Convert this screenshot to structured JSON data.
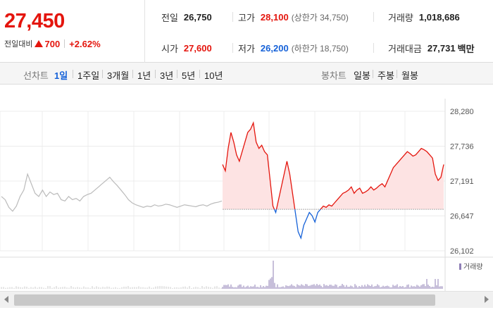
{
  "summary": {
    "price": "27,450",
    "change_label": "전일대비",
    "change_amount": "700",
    "change_pct": "+2.62%"
  },
  "info": {
    "prev_label": "전일",
    "prev_value": "26,750",
    "high_label": "고가",
    "high_value": "28,100",
    "upper_label": "(상한가 34,750)",
    "volume_label": "거래량",
    "volume_value": "1,018,686",
    "open_label": "시가",
    "open_value": "27,600",
    "low_label": "저가",
    "low_value": "26,200",
    "lower_label": "(하한가 18,750)",
    "amount_label": "거래대금",
    "amount_value": "27,731",
    "amount_unit": "백만"
  },
  "tabs": {
    "line_label": "선차트",
    "periods": [
      "1일",
      "1주일",
      "3개월",
      "1년",
      "3년",
      "5년",
      "10년"
    ],
    "selected_period": "1일",
    "candle_label": "봉차트",
    "candles": [
      "일봉",
      "주봉",
      "월봉"
    ]
  },
  "colors": {
    "up": "#e4150d",
    "down": "#1561d8",
    "prev_day": "#bbbbbb",
    "volume": "#8f7fb6"
  },
  "chart_data": {
    "type": "line",
    "yticks": [
      "28,280",
      "27,736",
      "27,191",
      "26,647",
      "26,102"
    ],
    "ylim": [
      26102,
      28280
    ],
    "base_price": 26750,
    "grid": true,
    "prev_day_series": [
      26950,
      26900,
      26780,
      26720,
      26800,
      26950,
      27050,
      27300,
      27150,
      27000,
      26950,
      27050,
      26950,
      27020,
      26980,
      27000,
      26900,
      26880,
      26950,
      26900,
      26920,
      26880,
      26950,
      26980,
      27000,
      27050,
      27100,
      27150,
      27200,
      27250,
      27180,
      27120,
      27050,
      26980,
      26900,
      26850,
      26820,
      26800,
      26780,
      26800,
      26790,
      26820,
      26800,
      26810,
      26830,
      26820,
      26800,
      26780,
      26800,
      26820,
      26810,
      26800,
      26790,
      26810,
      26820,
      26800,
      26830,
      26850,
      26860,
      26880
    ],
    "today_series": [
      27450,
      27350,
      27700,
      27950,
      27800,
      27600,
      27500,
      27650,
      27800,
      27950,
      28000,
      28100,
      27800,
      27700,
      27750,
      27650,
      27600,
      27200,
      26800,
      26700,
      26900,
      27100,
      27300,
      27500,
      27300,
      27000,
      26700,
      26400,
      26300,
      26500,
      26600,
      26700,
      26650,
      26550,
      26700,
      26750,
      26800,
      26780,
      26820,
      26800,
      26850,
      26900,
      26950,
      27000,
      27020,
      27050,
      27100,
      27000,
      27050,
      27080,
      27000,
      27020,
      27050,
      27100,
      27050,
      27080,
      27120,
      27150,
      27100,
      27200,
      27300,
      27400,
      27450,
      27500,
      27550,
      27600,
      27650,
      27620,
      27580,
      27600,
      27650,
      27700,
      27680,
      27650,
      27600,
      27550,
      27300,
      27200,
      27250,
      27450
    ],
    "volume_legend": "거래량"
  }
}
